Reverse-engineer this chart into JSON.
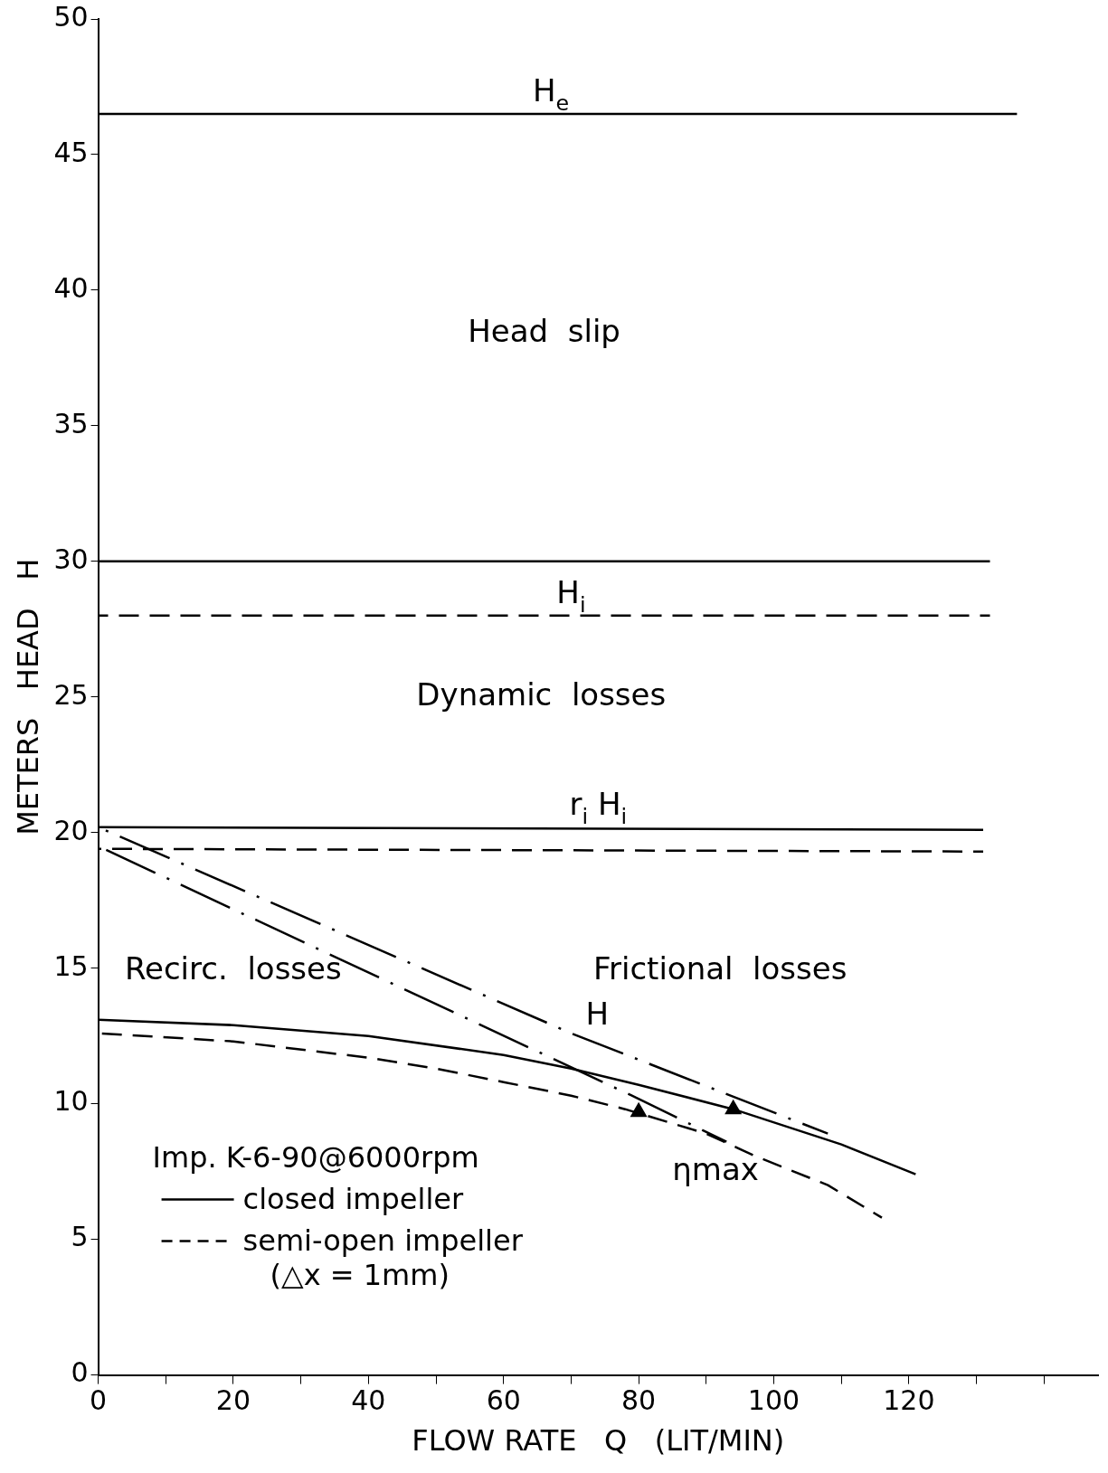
{
  "chart_data": {
    "type": "line",
    "xlabel": "FLOW RATE   Q   (LIT/MIN)",
    "ylabel": "METERS   HEAD   H",
    "xlim": [
      0,
      148
    ],
    "ylim": [
      0,
      50
    ],
    "xticks": [
      0,
      {
        "value": 10,
        "label": null
      },
      20,
      {
        "value": 30,
        "label": null
      },
      40,
      {
        "value": 50,
        "label": null
      },
      60,
      {
        "value": 70,
        "label": null
      },
      80,
      {
        "value": 90,
        "label": null
      },
      100,
      {
        "value": 110,
        "label": null
      },
      120,
      {
        "value": 130,
        "label": null
      },
      {
        "value": 140,
        "label": null
      }
    ],
    "yticks": [
      0,
      5,
      10,
      15,
      20,
      25,
      30,
      35,
      40,
      45,
      50
    ],
    "grid": false,
    "legend": "bottom left",
    "legend_title": "Imp. K-6-90@6000rpm",
    "series": [
      {
        "color": "#000000",
        "line_style": "solid",
        "x": [
          0,
          136
        ],
        "values": [
          46.5,
          46.5
        ]
      },
      {
        "color": "#000000",
        "line_style": "solid",
        "x": [
          0,
          132
        ],
        "values": [
          30,
          30
        ]
      },
      {
        "color": "#000000",
        "line_style": "dashed",
        "x": [
          0,
          132
        ],
        "values": [
          28,
          28
        ]
      },
      {
        "color": "#000000",
        "line_style": "solid",
        "x": [
          0,
          131
        ],
        "values": [
          20.2,
          20.1
        ]
      },
      {
        "color": "#000000",
        "line_style": "dashed",
        "x": [
          0,
          131
        ],
        "values": [
          19.4,
          19.3
        ]
      },
      {
        "name": "closed impeller",
        "color": "#000000",
        "line_style": "solid",
        "x": [
          0,
          20,
          40,
          60,
          70,
          80,
          94,
          110,
          121
        ],
        "values": [
          13.1,
          12.9,
          12.5,
          11.8,
          11.3,
          10.7,
          9.8,
          8.5,
          7.4
        ]
      },
      {
        "name": "semi-open impeller\n(△x = 1mm)",
        "color": "#000000",
        "line_style": "dashed",
        "x": [
          0,
          20,
          40,
          50,
          60,
          70,
          78,
          90,
          97,
          108,
          116
        ],
        "values": [
          12.6,
          12.3,
          11.7,
          11.3,
          10.8,
          10.3,
          9.8,
          8.9,
          8.1,
          7.0,
          5.8
        ]
      },
      {
        "color": "#000000",
        "line_style": "dashdot",
        "x": [
          0,
          70,
          108
        ],
        "values": [
          20.2,
          12.6,
          8.9
        ]
      },
      {
        "color": "#000000",
        "line_style": "dashdot",
        "x": [
          0,
          79,
          93
        ],
        "values": [
          19.5,
          10.3,
          8.6
        ]
      },
      {
        "type": "scatter",
        "color": "#000000",
        "marker": "triangle",
        "x": [
          80,
          94
        ],
        "values": [
          9.7,
          9.8
        ]
      }
    ],
    "annotations": [
      "Head  slip",
      "Dynamic  losses",
      "Recirc.  losses",
      "Frictional  losses",
      {
        "text": "H$_{e}$",
        "x": 67,
        "y": 46.5
      },
      {
        "text": "H$_{i}$",
        "x": 70,
        "y": 28
      },
      {
        "text": "r$_{i}$ H$_{i}$",
        "x": 74,
        "y": 20.2
      },
      {
        "text": "H",
        "x": 72,
        "y": 12.4
      },
      {
        "text": "ηmax",
        "x": 80,
        "y": 9.7
      }
    ]
  }
}
